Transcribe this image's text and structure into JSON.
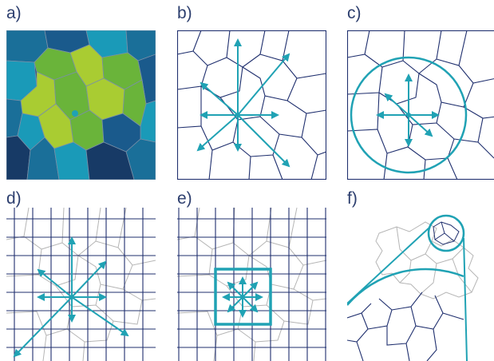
{
  "panels": [
    {
      "label": "a)"
    },
    {
      "label": "b)"
    },
    {
      "label": "c)"
    },
    {
      "label": "d)"
    },
    {
      "label": "e)"
    },
    {
      "label": "f)"
    }
  ],
  "colors": {
    "navy": "#1f2f6e",
    "teal": "#20a2b4",
    "grey": "#b5b5b5",
    "dark_blue": "#173a66",
    "mid_blue": "#1a6f99",
    "cyan": "#1a9ab8",
    "green": "#6ab43a",
    "light_green": "#a9cc32"
  }
}
